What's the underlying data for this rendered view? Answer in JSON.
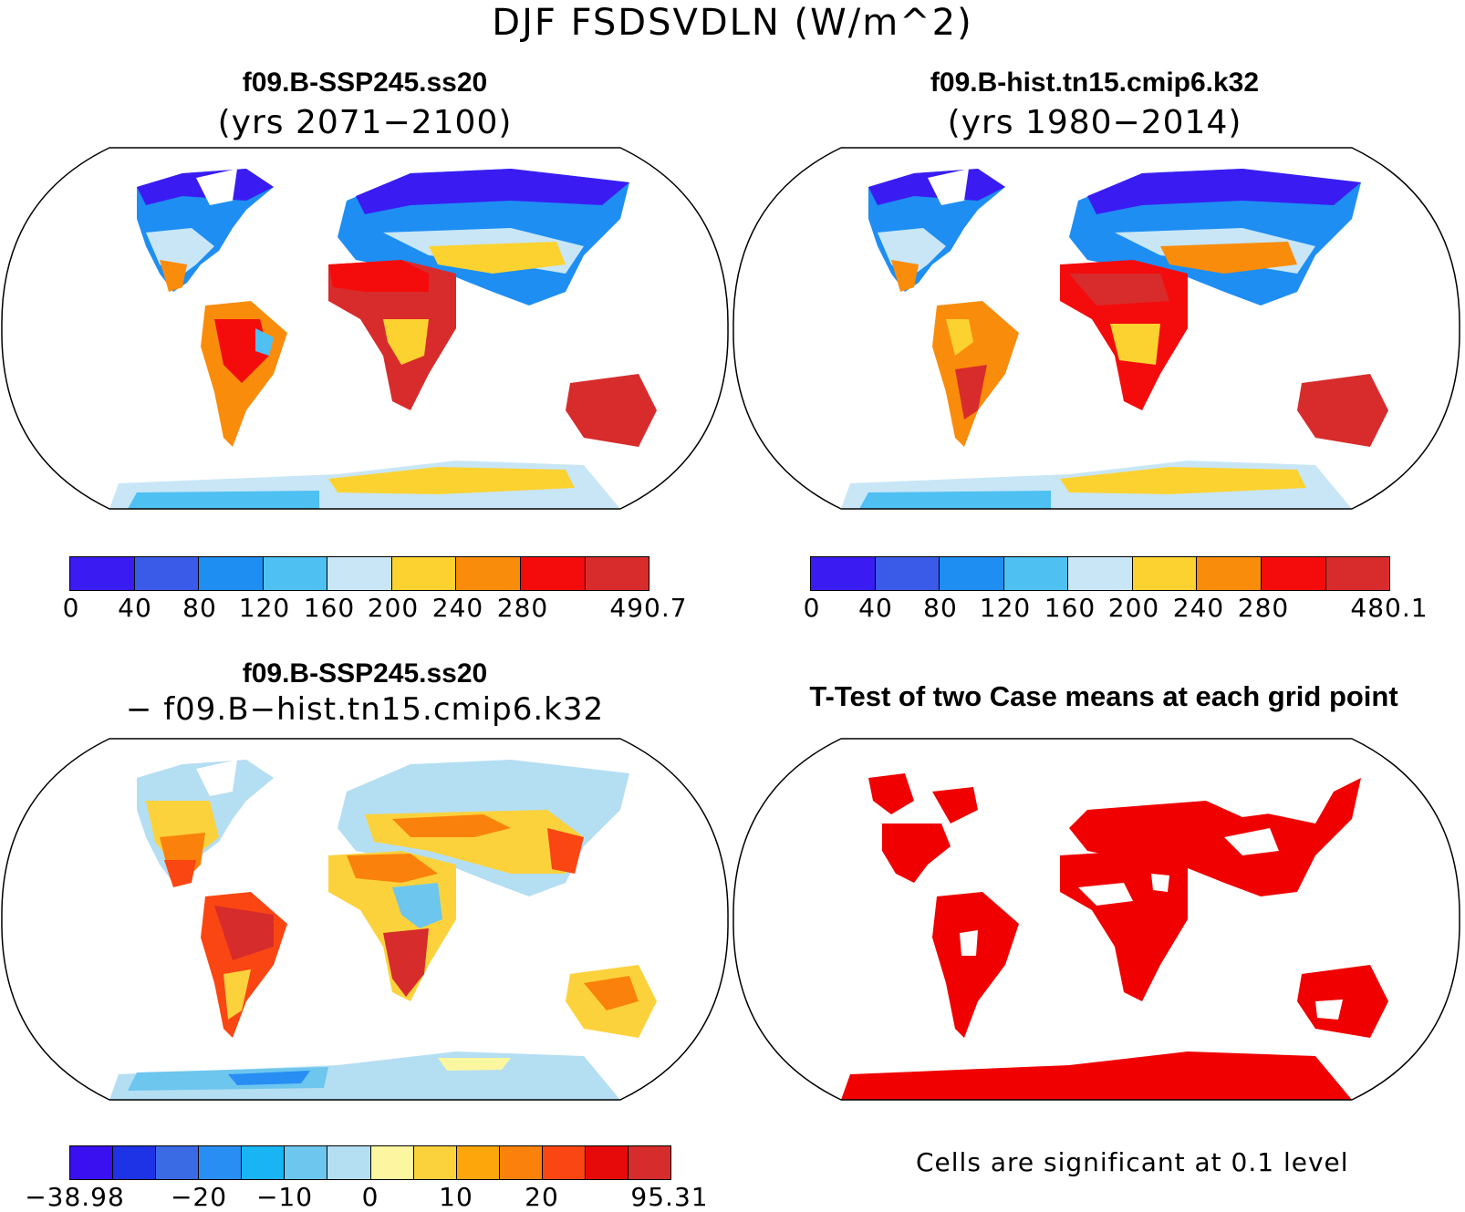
{
  "title": "DJF FSDSVDLN (W/m^2)",
  "panels": {
    "top_left": {
      "title": "f09.B-SSP245.ss20",
      "subtitle": "(yrs 2071−2100)",
      "colorbar": {
        "colors": [
          "#3a1cf2",
          "#3a5ae8",
          "#1e8ef2",
          "#4ec0f2",
          "#c8e6f6",
          "#fcd230",
          "#fa8c0c",
          "#f40c0c",
          "#d82c2c"
        ],
        "tick_labels": [
          "0",
          "40",
          "80",
          "120",
          "160",
          "200",
          "240",
          "280",
          "490.7"
        ]
      }
    },
    "top_right": {
      "title": "f09.B-hist.tn15.cmip6.k32",
      "subtitle": "(yrs 1980−2014)",
      "colorbar": {
        "colors": [
          "#3a1cf2",
          "#3a5ae8",
          "#1e8ef2",
          "#4ec0f2",
          "#c8e6f6",
          "#fcd230",
          "#fa8c0c",
          "#f40c0c",
          "#d82c2c"
        ],
        "tick_labels": [
          "0",
          "40",
          "80",
          "120",
          "160",
          "200",
          "240",
          "280",
          "480.1"
        ]
      }
    },
    "bottom_left": {
      "title": "f09.B-SSP245.ss20",
      "subtitle": "− f09.B−hist.tn15.cmip6.k32",
      "colorbar": {
        "colors": [
          "#3a10f0",
          "#1e32e6",
          "#3a6ae4",
          "#288ef4",
          "#18b4f4",
          "#6cc6ee",
          "#b4def2",
          "#fcf6a0",
          "#fcd23c",
          "#fca60c",
          "#fa820c",
          "#fa4612",
          "#e60a0a",
          "#d62c2c"
        ],
        "tick_labels": [
          "−38.98",
          "−20",
          "−10",
          "0",
          "10",
          "20",
          "95.31"
        ]
      }
    },
    "bottom_right": {
      "title": "T-Test of two Case means at each grid point",
      "note": "Cells are significant at 0.1 level",
      "sig_color": "#f00000"
    }
  }
}
